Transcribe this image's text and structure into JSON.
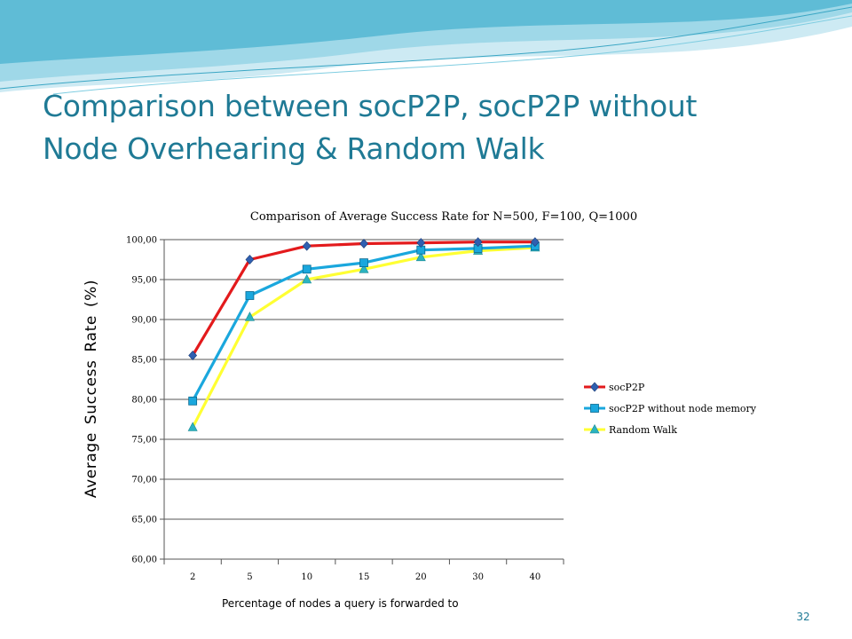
{
  "slide": {
    "title_line1": "Comparison between socP2P, socP2P without",
    "title_line2": "Node Overhearing & Random Walk",
    "page_number": "32"
  },
  "colors": {
    "title": "#1f7a95",
    "wave_light": "#bfe6f0",
    "wave_mid": "#7fcde1",
    "wave_dark": "#3aa6c4"
  },
  "icons": [
    "diamond-marker-icon",
    "square-marker-icon",
    "triangle-marker-icon"
  ],
  "chart_data": {
    "type": "line",
    "title": "Comparison of Average Success Rate for N=500, F=100, Q=1000",
    "xlabel": "Percentage of nodes a query is forwarded to",
    "ylabel": "Average  Success  Rate  (%)",
    "categories": [
      "2",
      "5",
      "10",
      "15",
      "20",
      "30",
      "40"
    ],
    "ylim": [
      60,
      100
    ],
    "yticks": [
      "60,00",
      "65,00",
      "70,00",
      "75,00",
      "80,00",
      "85,00",
      "90,00",
      "95,00",
      "100,00"
    ],
    "grid": true,
    "legend_position": "right",
    "series": [
      {
        "name": "socP2P",
        "color": "#e31a1c",
        "marker": "diamond",
        "marker_color": "#2f5fb0",
        "values": [
          85.5,
          97.5,
          99.2,
          99.5,
          99.6,
          99.7,
          99.7
        ]
      },
      {
        "name": "socP2P without node memory",
        "color": "#1aa7dd",
        "marker": "square",
        "marker_color": "#1aa7dd",
        "values": [
          79.8,
          93.0,
          96.3,
          97.1,
          98.7,
          98.9,
          99.2
        ]
      },
      {
        "name": "Random Walk",
        "color": "#ffff33",
        "marker": "triangle",
        "marker_color": "#2bb3c0",
        "values": [
          76.5,
          90.3,
          95.0,
          96.3,
          97.8,
          98.6,
          99.0
        ]
      }
    ]
  }
}
